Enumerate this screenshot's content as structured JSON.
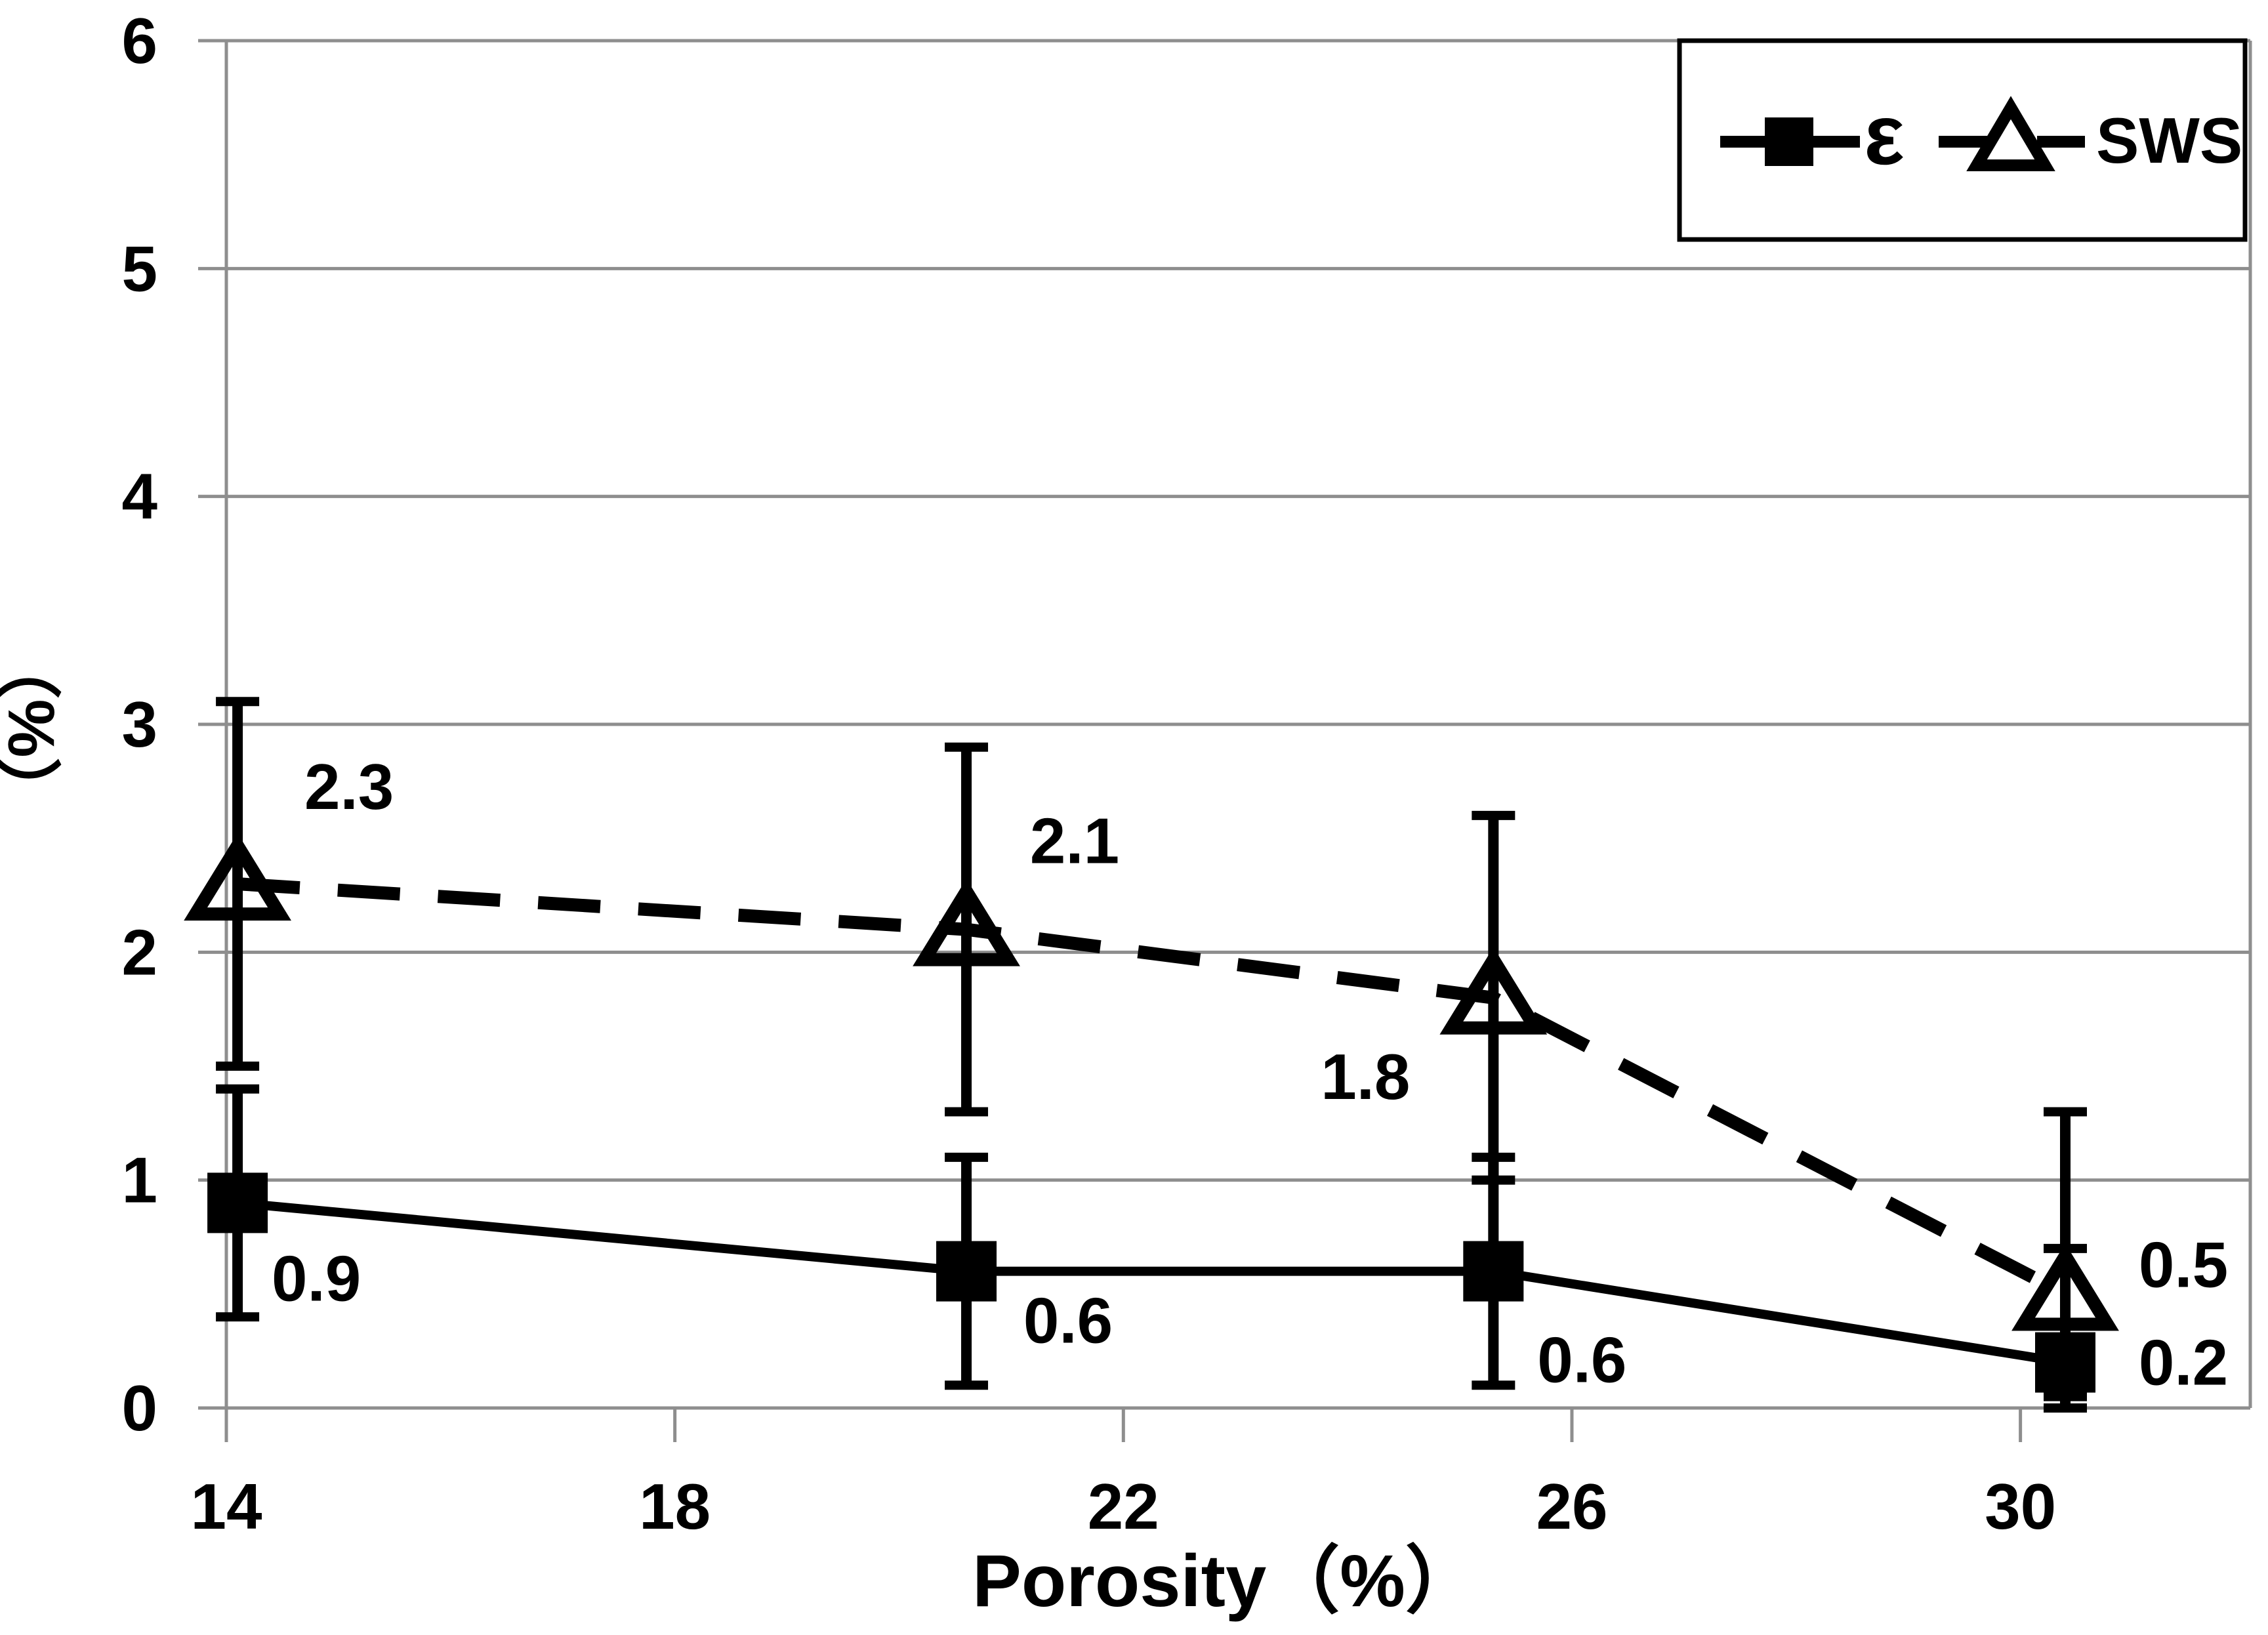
{
  "chart_data": {
    "type": "line",
    "title": "",
    "xlabel": "Porosity（%）",
    "ylabel": "（%）",
    "xlim": [
      14,
      32.05
    ],
    "ylim": [
      0,
      6
    ],
    "x_ticks": [
      14,
      18,
      22,
      26,
      30
    ],
    "x_tick_labels": [
      "14",
      "18",
      "22",
      "26",
      "30"
    ],
    "y_ticks": [
      0,
      1,
      2,
      3,
      4,
      5,
      6
    ],
    "y_tick_labels": [
      "0",
      "1",
      "2",
      "3",
      "4",
      "5",
      "6"
    ],
    "grid": "horizontal-gridlines-on",
    "legend_position": "top-right",
    "colors": {
      "series": "#000000",
      "axis": "#8e8e8e",
      "background": "#ffffff"
    },
    "series": [
      {
        "name": "ε",
        "marker": "filled-square",
        "line_style": "solid",
        "x": [
          14.1,
          20.6,
          25.3,
          30.4
        ],
        "y": [
          0.9,
          0.6,
          0.6,
          0.2
        ],
        "point_labels": [
          "0.9",
          "0.6",
          "0.6",
          "0.2"
        ],
        "error_lo": [
          0.4,
          0.1,
          0.1,
          0.0
        ],
        "error_hi": [
          1.4,
          1.1,
          1.1,
          0.7
        ],
        "label_offsets": [
          [
            120,
            115
          ],
          [
            155,
            75
          ],
          [
            135,
            135
          ],
          [
            180,
            0
          ]
        ]
      },
      {
        "name": "SWS",
        "marker": "open-triangle",
        "line_style": "dashed",
        "x": [
          14.1,
          20.6,
          25.3,
          30.4
        ],
        "y": [
          2.3,
          2.1,
          1.8,
          0.5
        ],
        "point_labels": [
          "2.3",
          "2.1",
          "1.8",
          "0.5"
        ],
        "error_lo": [
          1.5,
          1.3,
          1.0,
          0.05
        ],
        "error_hi": [
          3.1,
          2.9,
          2.6,
          1.3
        ],
        "label_offsets": [
          [
            170,
            -148
          ],
          [
            165,
            -135
          ],
          [
            -195,
            120
          ],
          [
            180,
            -45
          ]
        ]
      }
    ]
  }
}
